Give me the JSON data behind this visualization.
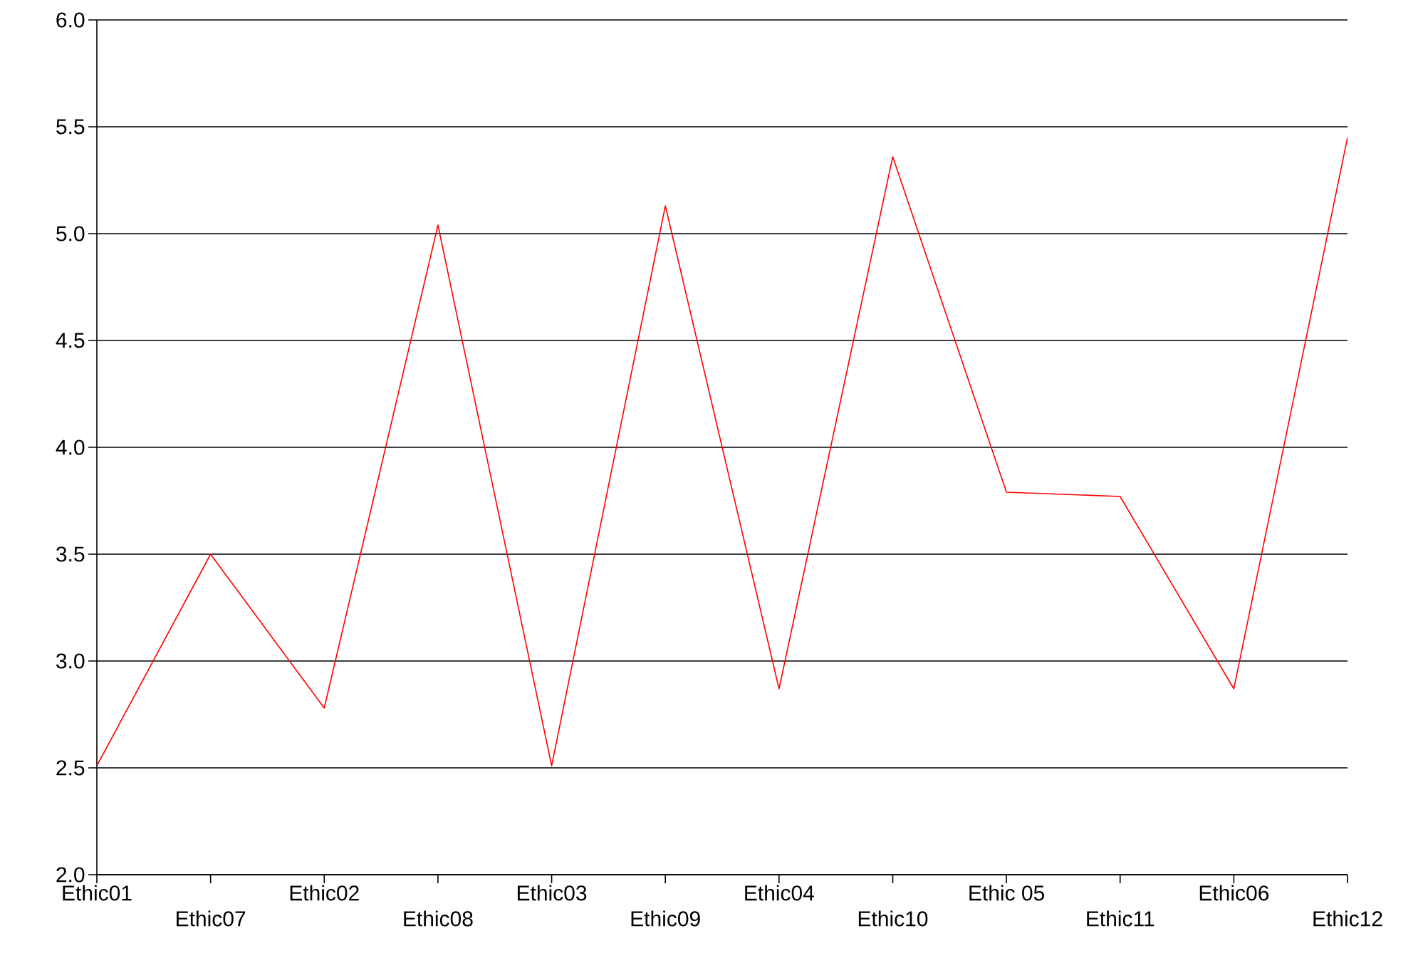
{
  "chart_data": {
    "type": "line",
    "categories": [
      "Ethic01",
      "Ethic07",
      "Ethic02",
      "Ethic08",
      "Ethic03",
      "Ethic09",
      "Ethic04",
      "Ethic10",
      "Ethic 05",
      "Ethic11",
      "Ethic06",
      "Ethic12"
    ],
    "values": [
      2.51,
      3.5,
      2.78,
      5.04,
      2.51,
      5.13,
      2.87,
      5.36,
      3.79,
      3.77,
      2.87,
      5.45
    ],
    "color": "#ff0000",
    "ylim": [
      2.0,
      6.0
    ],
    "yticks": [
      {
        "value": 2.0,
        "label": "2.0"
      },
      {
        "value": 2.5,
        "label": "2.5"
      },
      {
        "value": 3.0,
        "label": "3.0"
      },
      {
        "value": 3.5,
        "label": "3.5"
      },
      {
        "value": 4.0,
        "label": "4.0"
      },
      {
        "value": 4.5,
        "label": "4.5"
      },
      {
        "value": 5.0,
        "label": "5.0"
      },
      {
        "value": 5.5,
        "label": "5.5"
      },
      {
        "value": 6.0,
        "label": "6.0"
      }
    ],
    "grid": "y",
    "marker": "none",
    "line_style": "solid"
  }
}
